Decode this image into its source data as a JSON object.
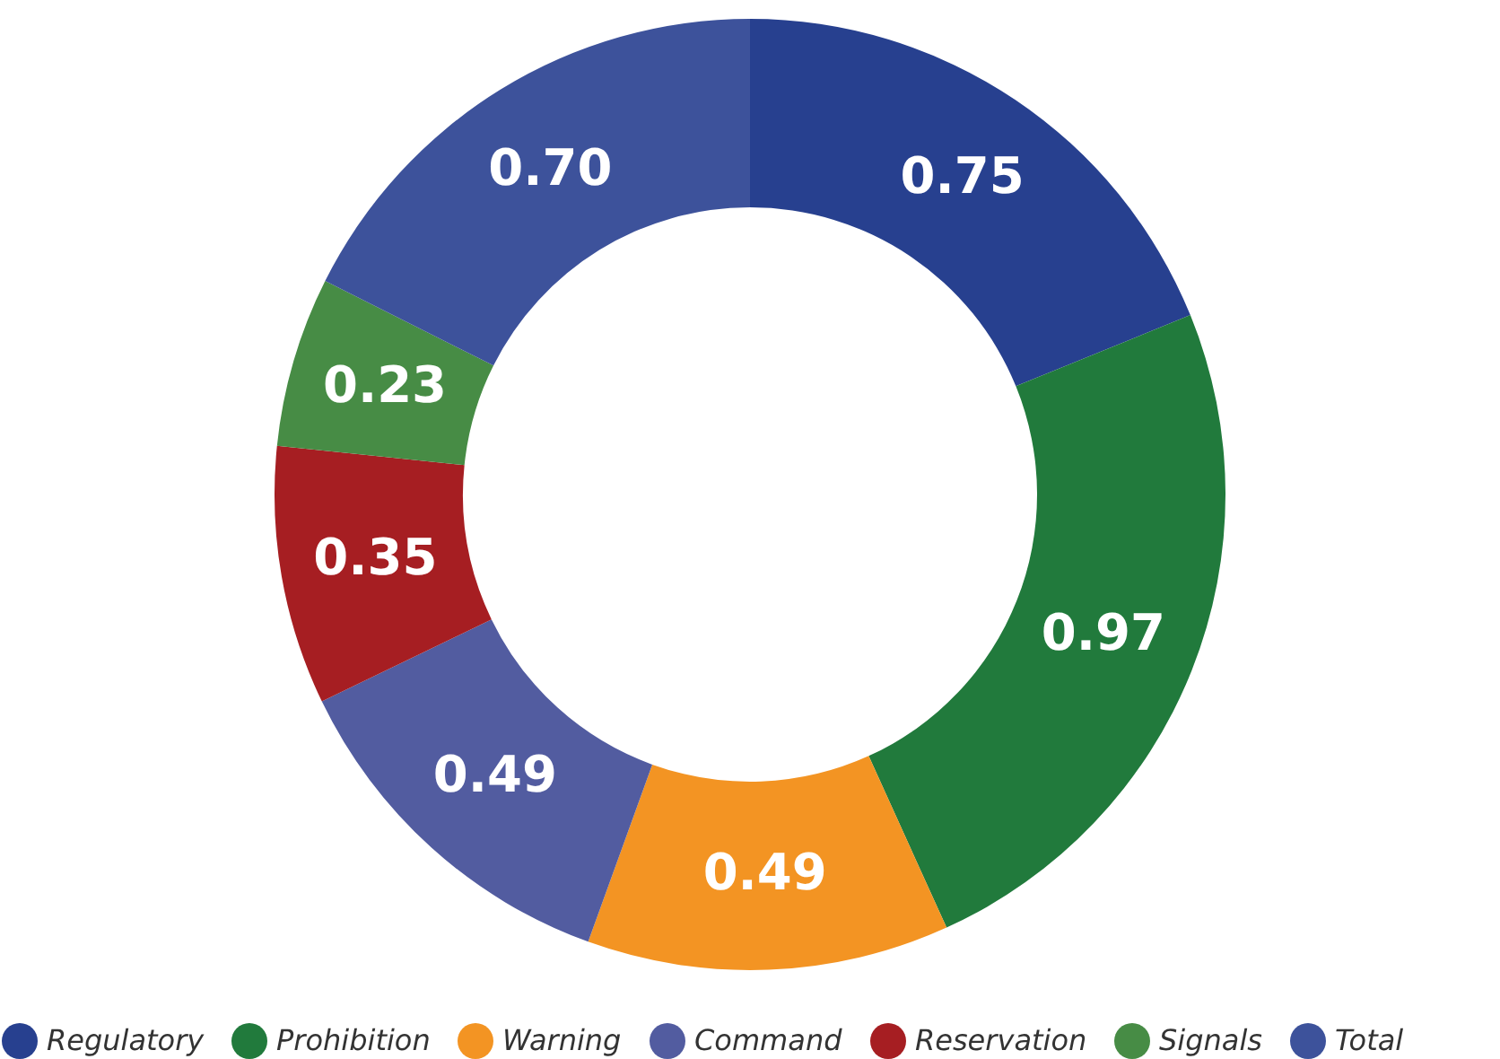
{
  "chart_data": {
    "type": "donut",
    "categories": [
      "Regulatory",
      "Prohibition",
      "Warning",
      "Command",
      "Reservation",
      "Signals",
      "Total"
    ],
    "values": [
      0.75,
      0.97,
      0.49,
      0.49,
      0.35,
      0.23,
      0.7
    ],
    "colors": [
      "#27408f",
      "#217a3c",
      "#f39423",
      "#525ca0",
      "#a61e22",
      "#478c45",
      "#3d529b"
    ],
    "value_labels": [
      "0.75",
      "0.97",
      "0.49",
      "0.49",
      "0.35",
      "0.23",
      "0.70"
    ],
    "legend": "bottom"
  }
}
